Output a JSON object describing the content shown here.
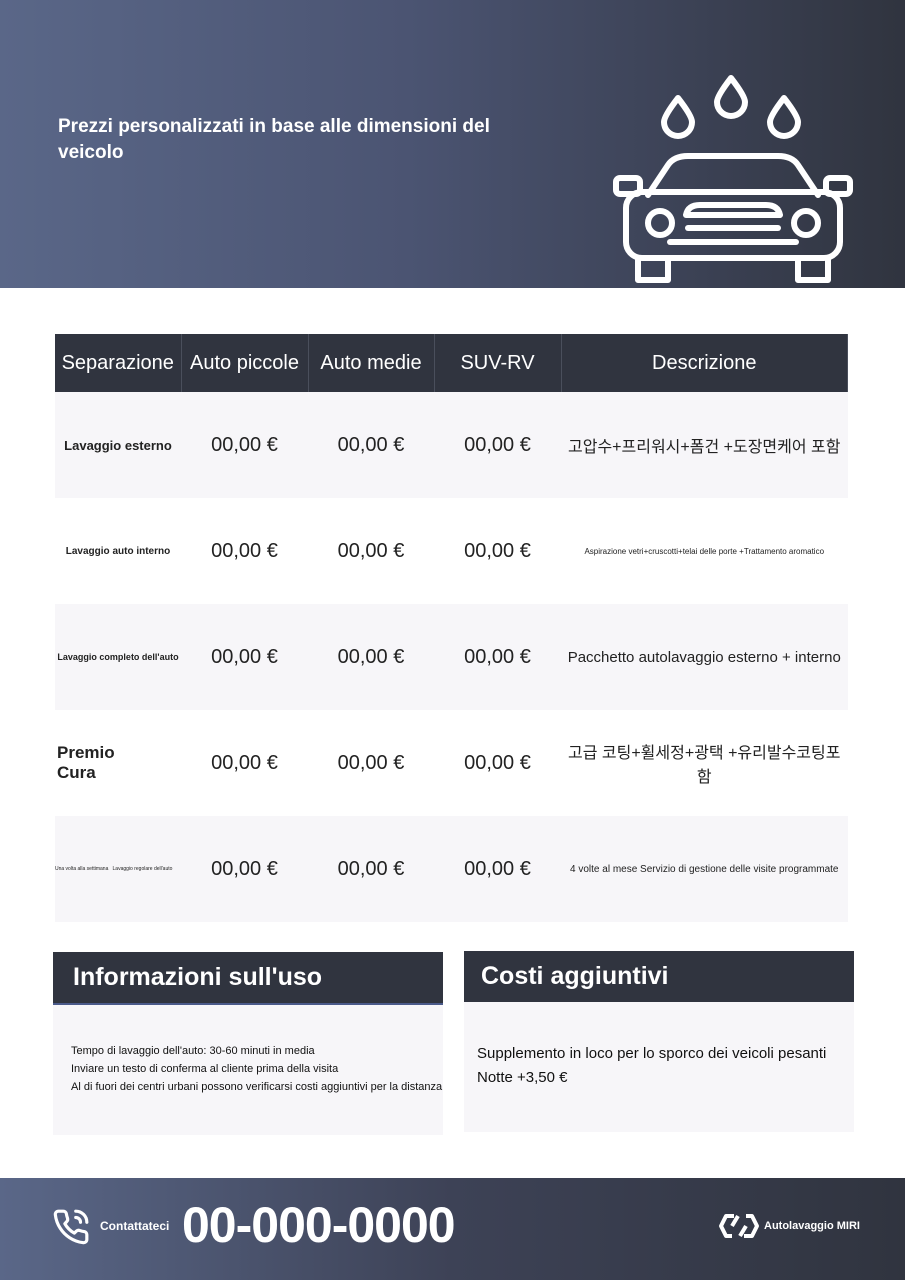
{
  "hero": {
    "title": "Prezzi personalizzati in base alle dimensioni del veicolo"
  },
  "table": {
    "headers": [
      "Separazione",
      "Auto piccole",
      "Auto medie",
      "SUV-RV",
      "Descrizione"
    ],
    "rows": [
      {
        "name": "Lavaggio esterno",
        "small": "00,00 €",
        "medium": "00,00 €",
        "suv": "00,00 €",
        "desc": "고압수+프리워시+폼건 +도장면케어 포함"
      },
      {
        "name": "Lavaggio auto interno",
        "small": "00,00 €",
        "medium": "00,00 €",
        "suv": "00,00 €",
        "desc": "Aspirazione vetri+cruscotti+telai delle porte +Trattamento aromatico"
      },
      {
        "name": "Lavaggio completo dell'auto",
        "small": "00,00 €",
        "medium": "00,00 €",
        "suv": "00,00 €",
        "desc": "Pacchetto autolavaggio esterno + interno"
      },
      {
        "name": "Premio Cura",
        "small": "00,00 €",
        "medium": "00,00 €",
        "suv": "00,00 €",
        "desc": "고급 코팅+휠세정+광택 +유리발수코팅포함"
      },
      {
        "name": "Una volta alla settimana   Lavaggio regolare dell'auto",
        "small": "00,00 €",
        "medium": "00,00 €",
        "suv": "00,00 €",
        "desc": "4 volte al mese Servizio di gestione delle visite programmate"
      }
    ]
  },
  "info": {
    "title": "Informazioni sull'uso",
    "lines": [
      "Tempo di lavaggio dell'auto: 30-60 minuti in media",
      "Inviare un testo di conferma al cliente prima della visita",
      "Al di fuori dei centri urbani possono verificarsi costi aggiuntivi per la distanza"
    ]
  },
  "costs": {
    "title": "Costi aggiuntivi",
    "lines": [
      "Supplemento in loco per lo sporco dei veicoli pesanti",
      "Notte +3,50 €"
    ]
  },
  "footer": {
    "contact_label": "Contattateci",
    "phone": "00-000-0000",
    "brand": "Autolavaggio MIRI"
  }
}
